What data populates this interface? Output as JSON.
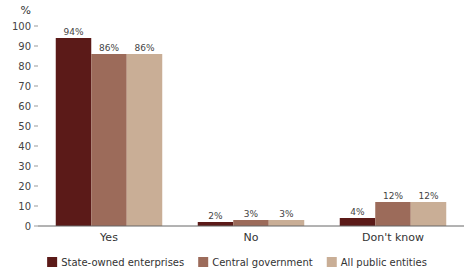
{
  "chart_data": {
    "type": "bar",
    "ylabel": "%",
    "categories": [
      "Yes",
      "No",
      "Don't know"
    ],
    "series": [
      {
        "name": "State-owned enterprises",
        "color": "#5B1A18",
        "values": [
          94,
          2,
          4
        ],
        "value_labels": [
          "94%",
          "2%",
          "4%"
        ]
      },
      {
        "name": "Central government",
        "color": "#9C6B5A",
        "values": [
          86,
          3,
          12
        ],
        "value_labels": [
          "86%",
          "3%",
          "12%"
        ]
      },
      {
        "name": "All public entities",
        "color": "#C9AE96",
        "values": [
          86,
          3,
          12
        ],
        "value_labels": [
          "86%",
          "3%",
          "12%"
        ]
      }
    ],
    "ylim": [
      0,
      100
    ],
    "yticks": [
      0,
      10,
      20,
      30,
      40,
      50,
      60,
      70,
      80,
      90,
      100
    ],
    "data_labels": true,
    "grid": false,
    "legend": "bottom"
  }
}
